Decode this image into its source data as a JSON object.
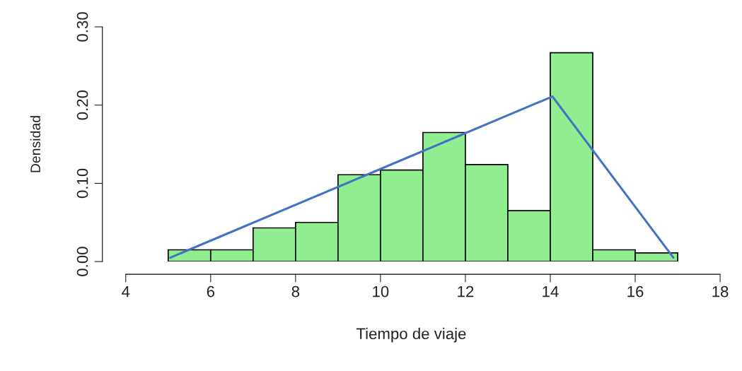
{
  "chart_data": {
    "type": "histogram",
    "xlabel": "Tiempo de viaje",
    "ylabel": "Densidad",
    "bins": [
      5,
      6,
      7,
      8,
      9,
      10,
      11,
      12,
      13,
      14,
      15,
      16,
      17
    ],
    "values": [
      0.015,
      0.015,
      0.043,
      0.05,
      0.111,
      0.117,
      0.165,
      0.124,
      0.065,
      0.267,
      0.015,
      0.011
    ],
    "color": "#90ee90",
    "series": [
      {
        "type": "line",
        "color": "#4472c4",
        "x": [
          5.05,
          14.05,
          16.9
        ],
        "values": [
          0.005,
          0.211,
          0.005
        ]
      }
    ],
    "xlim": [
      3.45,
      18
    ],
    "ylim": [
      0,
      0.3
    ],
    "xticks": [
      4,
      6,
      8,
      10,
      12,
      14,
      16,
      18
    ],
    "yticks": [
      {
        "value": 0,
        "label": "0.00"
      },
      {
        "value": 0.1,
        "label": "0.10"
      },
      {
        "value": 0.2,
        "label": "0.20"
      },
      {
        "value": 0.3,
        "label": "0.30"
      }
    ],
    "grid": false
  }
}
